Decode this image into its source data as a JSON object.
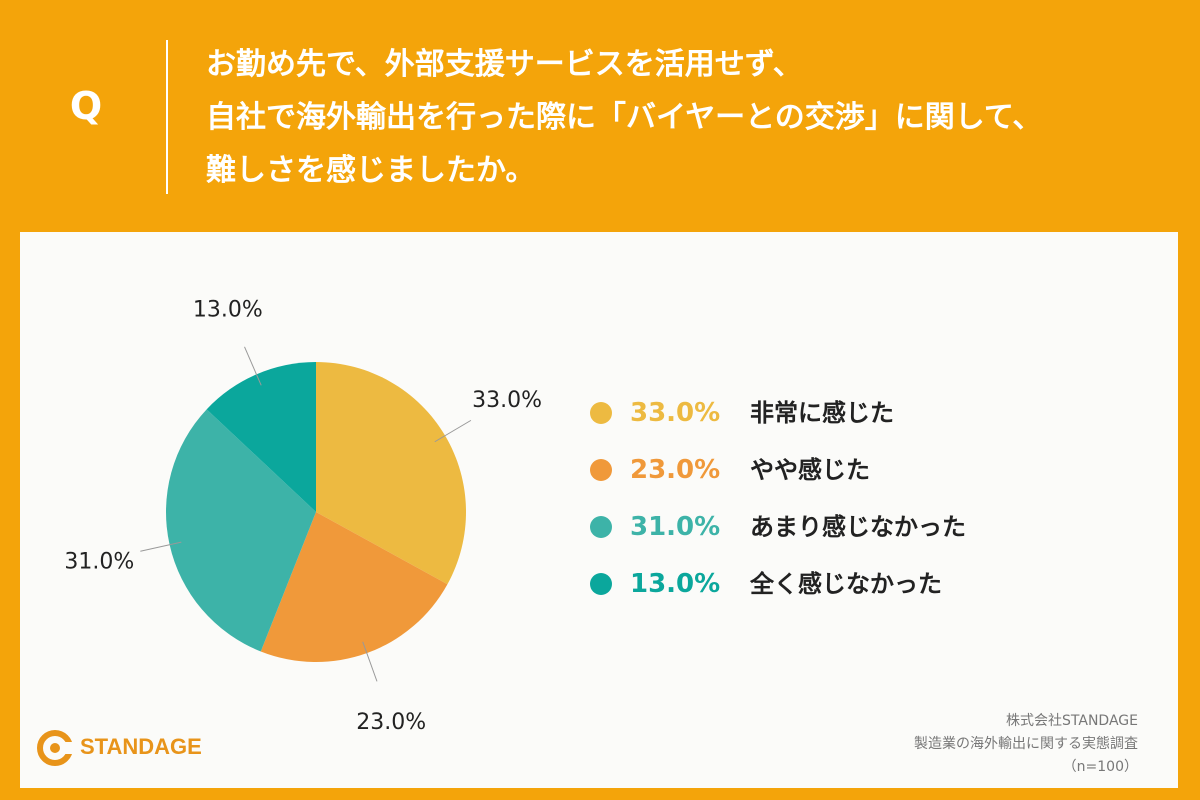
{
  "header": {
    "q_mark": "Q",
    "question_lines": [
      "お勤め先で、外部支援サービスを活用せず、",
      "自社で海外輸出を行った際に「バイヤーとの交渉」に関して、",
      "難しさを感じましたか。"
    ]
  },
  "chart_data": {
    "type": "pie",
    "categories": [
      "非常に感じた",
      "やや感じた",
      "あまり感じなかった",
      "全く感じなかった"
    ],
    "values": [
      33.0,
      23.0,
      31.0,
      13.0
    ],
    "data_labels": [
      "33.0%",
      "23.0%",
      "31.0%",
      "13.0%"
    ],
    "colors": [
      "#EDBA41",
      "#F0993A",
      "#3DB3A8",
      "#0BA79C"
    ],
    "start": "12 o'clock, clockwise",
    "legend_position": "right"
  },
  "legend": [
    {
      "pct": "33.0%",
      "label": "非常に感じた",
      "color": "#EDBA41"
    },
    {
      "pct": "23.0%",
      "label": "やや感じた",
      "color": "#F0993A"
    },
    {
      "pct": "31.0%",
      "label": "あまり感じなかった",
      "color": "#3DB3A8"
    },
    {
      "pct": "13.0%",
      "label": "全く感じなかった",
      "color": "#0BA79C"
    }
  ],
  "footer": {
    "logo_text": "STANDAGE",
    "company": "株式会社STANDAGE",
    "survey": "製造業の海外輸出に関する実態調査",
    "sample": "（n=100）"
  },
  "theme": {
    "background": "#F4A40A",
    "panel": "#FBFBF9",
    "label_color": "#222222"
  }
}
